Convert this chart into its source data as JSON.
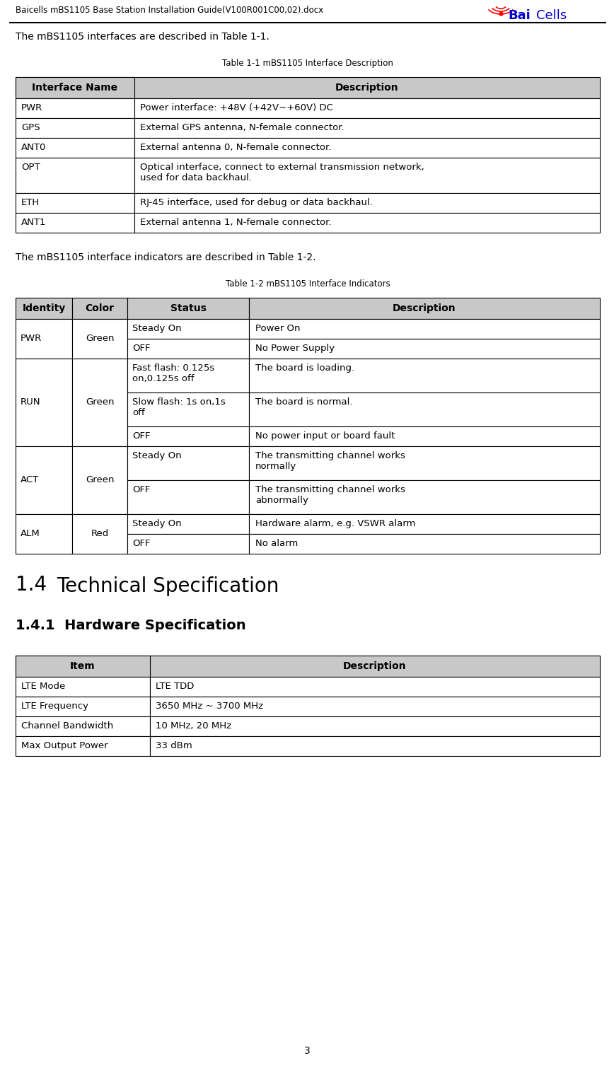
{
  "header_text": "Baicells mBS1105 Base Station Installation Guide(V100R001C00,02).docx",
  "intro_text1": "The mBS1105 interfaces are described in Table 1-1.",
  "table1_title": "Table 1-1 mBS1105 Interface Description",
  "table1_header": [
    "Interface Name",
    "Description"
  ],
  "table1_rows": [
    [
      "PWR",
      "Power interface: +48V (+42V~+60V) DC"
    ],
    [
      "GPS",
      "External GPS antenna, N-female connector."
    ],
    [
      "ANT0",
      "External antenna 0, N-female connector."
    ],
    [
      "OPT",
      "Optical interface, connect to external transmission network,\nused for data backhaul."
    ],
    [
      "ETH",
      "RJ-45 interface, used for debug or data backhaul."
    ],
    [
      "ANT1",
      "External antenna 1, N-female connector."
    ]
  ],
  "intro_text2": "The mBS1105 interface indicators are described in Table 1-2.",
  "table2_title": "Table 1-2 mBS1105 Interface Indicators",
  "table2_header": [
    "Identity",
    "Color",
    "Status",
    "Description"
  ],
  "table2_rows": [
    [
      "PWR",
      "Green",
      "Steady On",
      "Power On"
    ],
    [
      "",
      "",
      "OFF",
      "No Power Supply"
    ],
    [
      "RUN",
      "Green",
      "Fast flash: 0.125s\non,0.125s off",
      "The board is loading."
    ],
    [
      "",
      "",
      "Slow flash: 1s on,1s\noff",
      "The board is normal."
    ],
    [
      "",
      "",
      "OFF",
      "No power input or board fault"
    ],
    [
      "ACT",
      "Green",
      "Steady On",
      "The transmitting channel works\nnormally"
    ],
    [
      "",
      "",
      "OFF",
      "The transmitting channel works\nabnormally"
    ],
    [
      "ALM",
      "Red",
      "Steady On",
      "Hardware alarm, e.g. VSWR alarm"
    ],
    [
      "",
      "",
      "OFF",
      "No alarm"
    ]
  ],
  "section_title_num": "1.4",
  "section_title_text": "Technical Specification",
  "subsection_title": "1.4.1  Hardware Specification",
  "table3_header": [
    "Item",
    "Description"
  ],
  "table3_rows": [
    [
      "LTE Mode",
      "LTE TDD"
    ],
    [
      "LTE Frequency",
      "3650 MHz ~ 3700 MHz"
    ],
    [
      "Channel Bandwidth",
      "10 MHz, 20 MHz"
    ],
    [
      "Max Output Power",
      "33 dBm"
    ]
  ],
  "page_number": "3",
  "header_gray": "#c8c8c8",
  "border_color": "#000000",
  "bg_color": "#ffffff"
}
